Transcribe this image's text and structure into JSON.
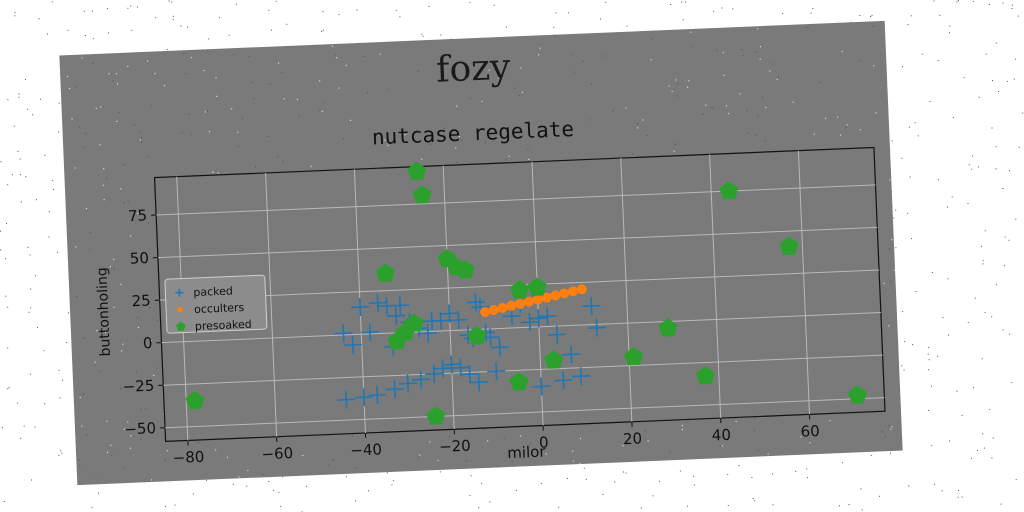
{
  "chart_data": {
    "type": "scatter",
    "suptitle": "fozy",
    "title": "nutcase regelate",
    "xlabel": "milor",
    "ylabel": "buttonholing",
    "xlim": [
      -85,
      77
    ],
    "ylim": [
      -58,
      97
    ],
    "xticks": [
      -80,
      -60,
      -40,
      -20,
      0,
      20,
      40,
      60
    ],
    "yticks": [
      -50,
      -25,
      0,
      25,
      50,
      75
    ],
    "grid": true,
    "legend": "left",
    "series": [
      {
        "name": "packed",
        "marker": "plus",
        "color": "#1f77b4",
        "points": [
          [
            -44,
            1
          ],
          [
            -42,
            -6
          ],
          [
            -40,
            16
          ],
          [
            -38,
            1
          ],
          [
            -36,
            18
          ],
          [
            -34,
            16
          ],
          [
            -33,
            -8
          ],
          [
            -32,
            10
          ],
          [
            -31,
            16
          ],
          [
            -29,
            6
          ],
          [
            -27,
            2
          ],
          [
            -25,
            -1
          ],
          [
            -24,
            6
          ],
          [
            -22,
            6
          ],
          [
            -20,
            10
          ],
          [
            -18,
            6
          ],
          [
            -16,
            -3
          ],
          [
            -15,
            -5
          ],
          [
            -14,
            16
          ],
          [
            -13,
            13
          ],
          [
            -12,
            -2
          ],
          [
            -11,
            -5
          ],
          [
            -9,
            -11
          ],
          [
            -6,
            7
          ],
          [
            -4,
            14
          ],
          [
            -2,
            3
          ],
          [
            0,
            5
          ],
          [
            2,
            6
          ],
          [
            4,
            -5
          ],
          [
            7,
            -17
          ],
          [
            12,
            11
          ],
          [
            13,
            -2
          ],
          [
            -44,
            -38
          ],
          [
            -40,
            -37
          ],
          [
            -37,
            -36
          ],
          [
            -33,
            -33
          ],
          [
            -30,
            -30
          ],
          [
            -27,
            -28
          ],
          [
            -24,
            -25
          ],
          [
            -22,
            -22
          ],
          [
            -20,
            -20
          ],
          [
            -18,
            -22
          ],
          [
            -16,
            -26
          ],
          [
            -14,
            -31
          ],
          [
            -10,
            -25
          ],
          [
            0,
            -35
          ],
          [
            5,
            -32
          ],
          [
            9,
            -30
          ]
        ]
      },
      {
        "name": "occulters",
        "marker": "circle",
        "color": "#ff7f0e",
        "points": [
          [
            -12,
            10
          ],
          [
            -10,
            11
          ],
          [
            -8,
            12
          ],
          [
            -6,
            13
          ],
          [
            -4,
            14
          ],
          [
            -2,
            15
          ],
          [
            0,
            16
          ],
          [
            2,
            17
          ],
          [
            4,
            18
          ],
          [
            6,
            19
          ],
          [
            8,
            20
          ],
          [
            10,
            21
          ]
        ]
      },
      {
        "name": "presoaked",
        "marker": "pentagon",
        "color": "#2ca02c",
        "points": [
          [
            -78,
            -35
          ],
          [
            -34,
            35
          ],
          [
            -32,
            -5
          ],
          [
            -30,
            0
          ],
          [
            -28,
            5
          ],
          [
            -26,
            94
          ],
          [
            -25,
            80
          ],
          [
            -24,
            -50
          ],
          [
            -20,
            42
          ],
          [
            -18,
            37
          ],
          [
            -16,
            35
          ],
          [
            -14,
            -4
          ],
          [
            -5,
            -32
          ],
          [
            -4,
            22
          ],
          [
            0,
            23
          ],
          [
            3,
            -20
          ],
          [
            21,
            -20
          ],
          [
            29,
            -4
          ],
          [
            37,
            -33
          ],
          [
            44,
            75
          ],
          [
            57,
            41
          ],
          [
            71,
            -48
          ]
        ]
      }
    ]
  }
}
